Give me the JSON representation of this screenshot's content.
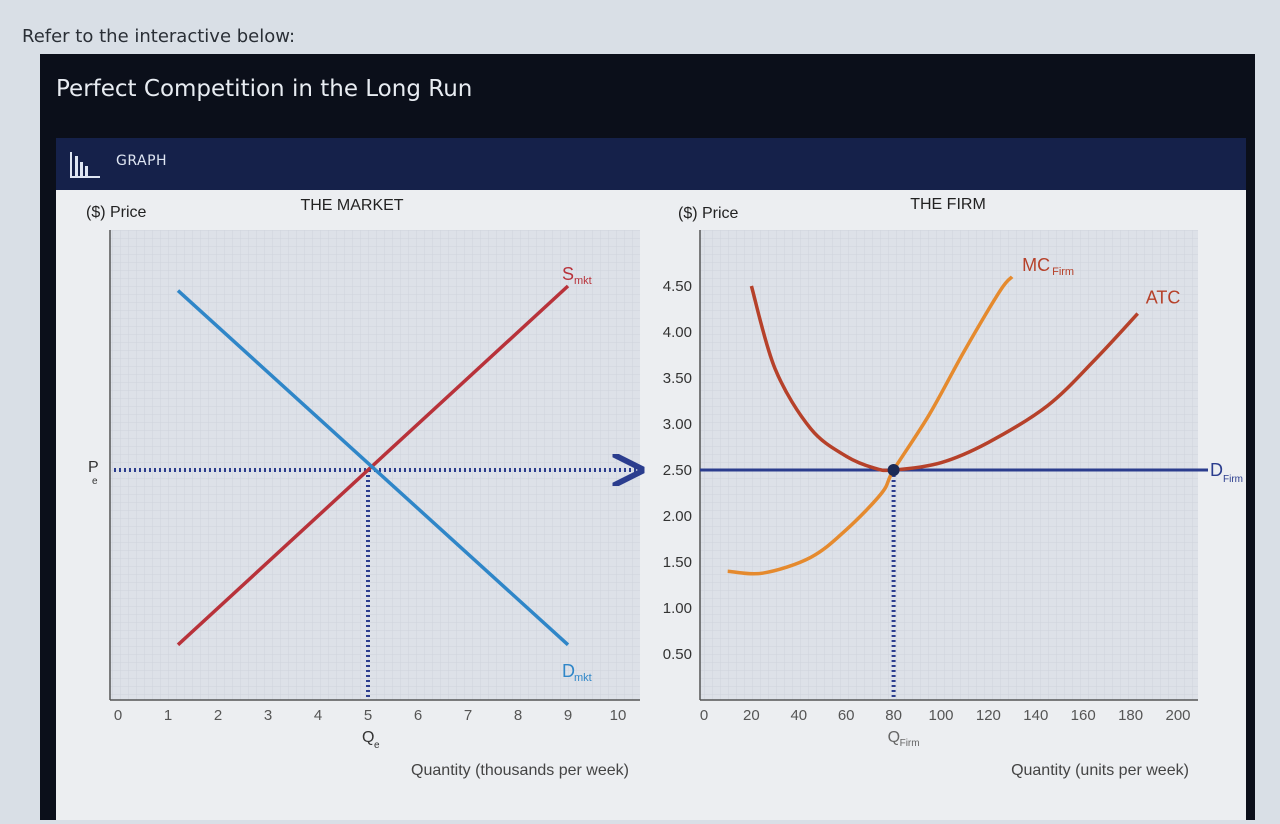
{
  "prompt": "Refer to the interactive below:",
  "title": "Perfect Competition in the Long Run",
  "tab": {
    "label": "GRAPH",
    "icon": "bar-chart-icon"
  },
  "colors": {
    "supply": "#b8323a",
    "demand": "#2f86c8",
    "mc": "#e58a2e",
    "atc": "#b6412a",
    "d_firm": "#2b3d8e",
    "dotted": "#2b3d8e",
    "plot_bg": "#dde1e8"
  },
  "chart_data": [
    {
      "type": "line",
      "title": "THE MARKET",
      "ylabel": "($) Price",
      "xlabel": "Quantity (thousands per week)",
      "xlim": [
        0,
        10
      ],
      "ylim": [
        0,
        5
      ],
      "x_ticks": [
        "0",
        "1",
        "2",
        "3",
        "4",
        "5",
        "6",
        "7",
        "8",
        "9",
        "10"
      ],
      "grid": true,
      "series": [
        {
          "name": "S",
          "subscript": "mkt",
          "x": [
            1.2,
            9
          ],
          "y": [
            0.6,
            4.5
          ]
        },
        {
          "name": "D",
          "subscript": "mkt",
          "x": [
            1.2,
            9
          ],
          "y": [
            4.45,
            0.6
          ]
        }
      ],
      "equilibrium": {
        "x": 5,
        "y": 2.5,
        "x_label": "Q",
        "x_label_sub": "e",
        "y_label": "P",
        "y_label_sub": "e"
      }
    },
    {
      "type": "line",
      "title": "THE FIRM",
      "ylabel": "($) Price",
      "xlabel": "Quantity (units per week)",
      "xlim": [
        0,
        200
      ],
      "ylim": [
        0,
        5
      ],
      "x_ticks": [
        "0",
        "20",
        "40",
        "60",
        "80",
        "100",
        "120",
        "140",
        "160",
        "180",
        "200"
      ],
      "y_ticks": [
        "0.50",
        "1.00",
        "1.50",
        "2.00",
        "2.50",
        "3.00",
        "3.50",
        "4.00",
        "4.50"
      ],
      "grid": true,
      "series": [
        {
          "name": "MC",
          "subscript": "Firm",
          "x": [
            10,
            25,
            45,
            60,
            75,
            80,
            95,
            110,
            125,
            130
          ],
          "y": [
            1.4,
            1.38,
            1.55,
            1.85,
            2.25,
            2.5,
            3.1,
            3.8,
            4.45,
            4.6
          ]
        },
        {
          "name": "ATC",
          "x": [
            20,
            30,
            45,
            60,
            72,
            80,
            100,
            120,
            145,
            165,
            183
          ],
          "y": [
            4.5,
            3.6,
            2.95,
            2.65,
            2.52,
            2.5,
            2.58,
            2.8,
            3.2,
            3.7,
            4.2
          ]
        },
        {
          "name": "D",
          "subscript": "Firm",
          "x": [
            0,
            200
          ],
          "y": [
            2.5,
            2.5
          ]
        }
      ],
      "equilibrium": {
        "x": 80,
        "y": 2.5,
        "x_label": "Q",
        "x_label_sub": "Firm"
      }
    }
  ]
}
